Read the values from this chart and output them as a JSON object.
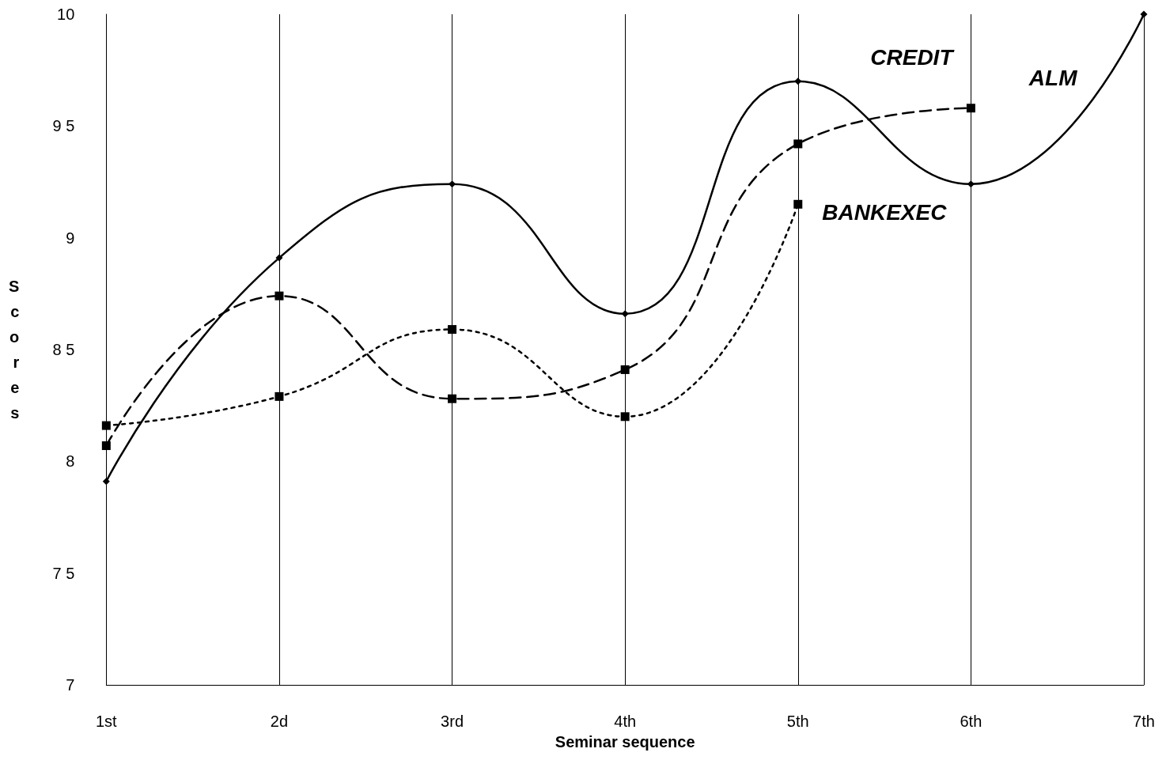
{
  "chart_data": {
    "type": "line",
    "xlabel": "Seminar sequence",
    "ylabel": "Scores",
    "categories": [
      "1st",
      "2d",
      "3rd",
      "4th",
      "5th",
      "6th",
      "7th"
    ],
    "series": [
      {
        "name": "ALM",
        "color": "#000000",
        "marker": "diamond",
        "line_style": "solid",
        "values": [
          7.91,
          8.91,
          9.24,
          8.66,
          9.7,
          9.24,
          10
        ]
      },
      {
        "name": "CREDIT",
        "color": "#000000",
        "marker": "square",
        "line_style": "dashed",
        "values": [
          8.07,
          8.74,
          8.28,
          8.41,
          9.42,
          9.58,
          null
        ]
      },
      {
        "name": "BANKEXEC",
        "color": "#000000",
        "marker": "square",
        "line_style": "dotted",
        "values": [
          8.16,
          8.29,
          8.59,
          8.2,
          9.15,
          null,
          null
        ]
      }
    ],
    "ylim": [
      7,
      10
    ],
    "yticks": [
      7,
      {
        "value": 7.5,
        "label": "7 5"
      },
      8,
      {
        "value": 8.5,
        "label": "8 5"
      },
      9,
      {
        "value": 9.5,
        "label": "9 5"
      },
      10
    ],
    "grid": "x",
    "legend": false
  }
}
